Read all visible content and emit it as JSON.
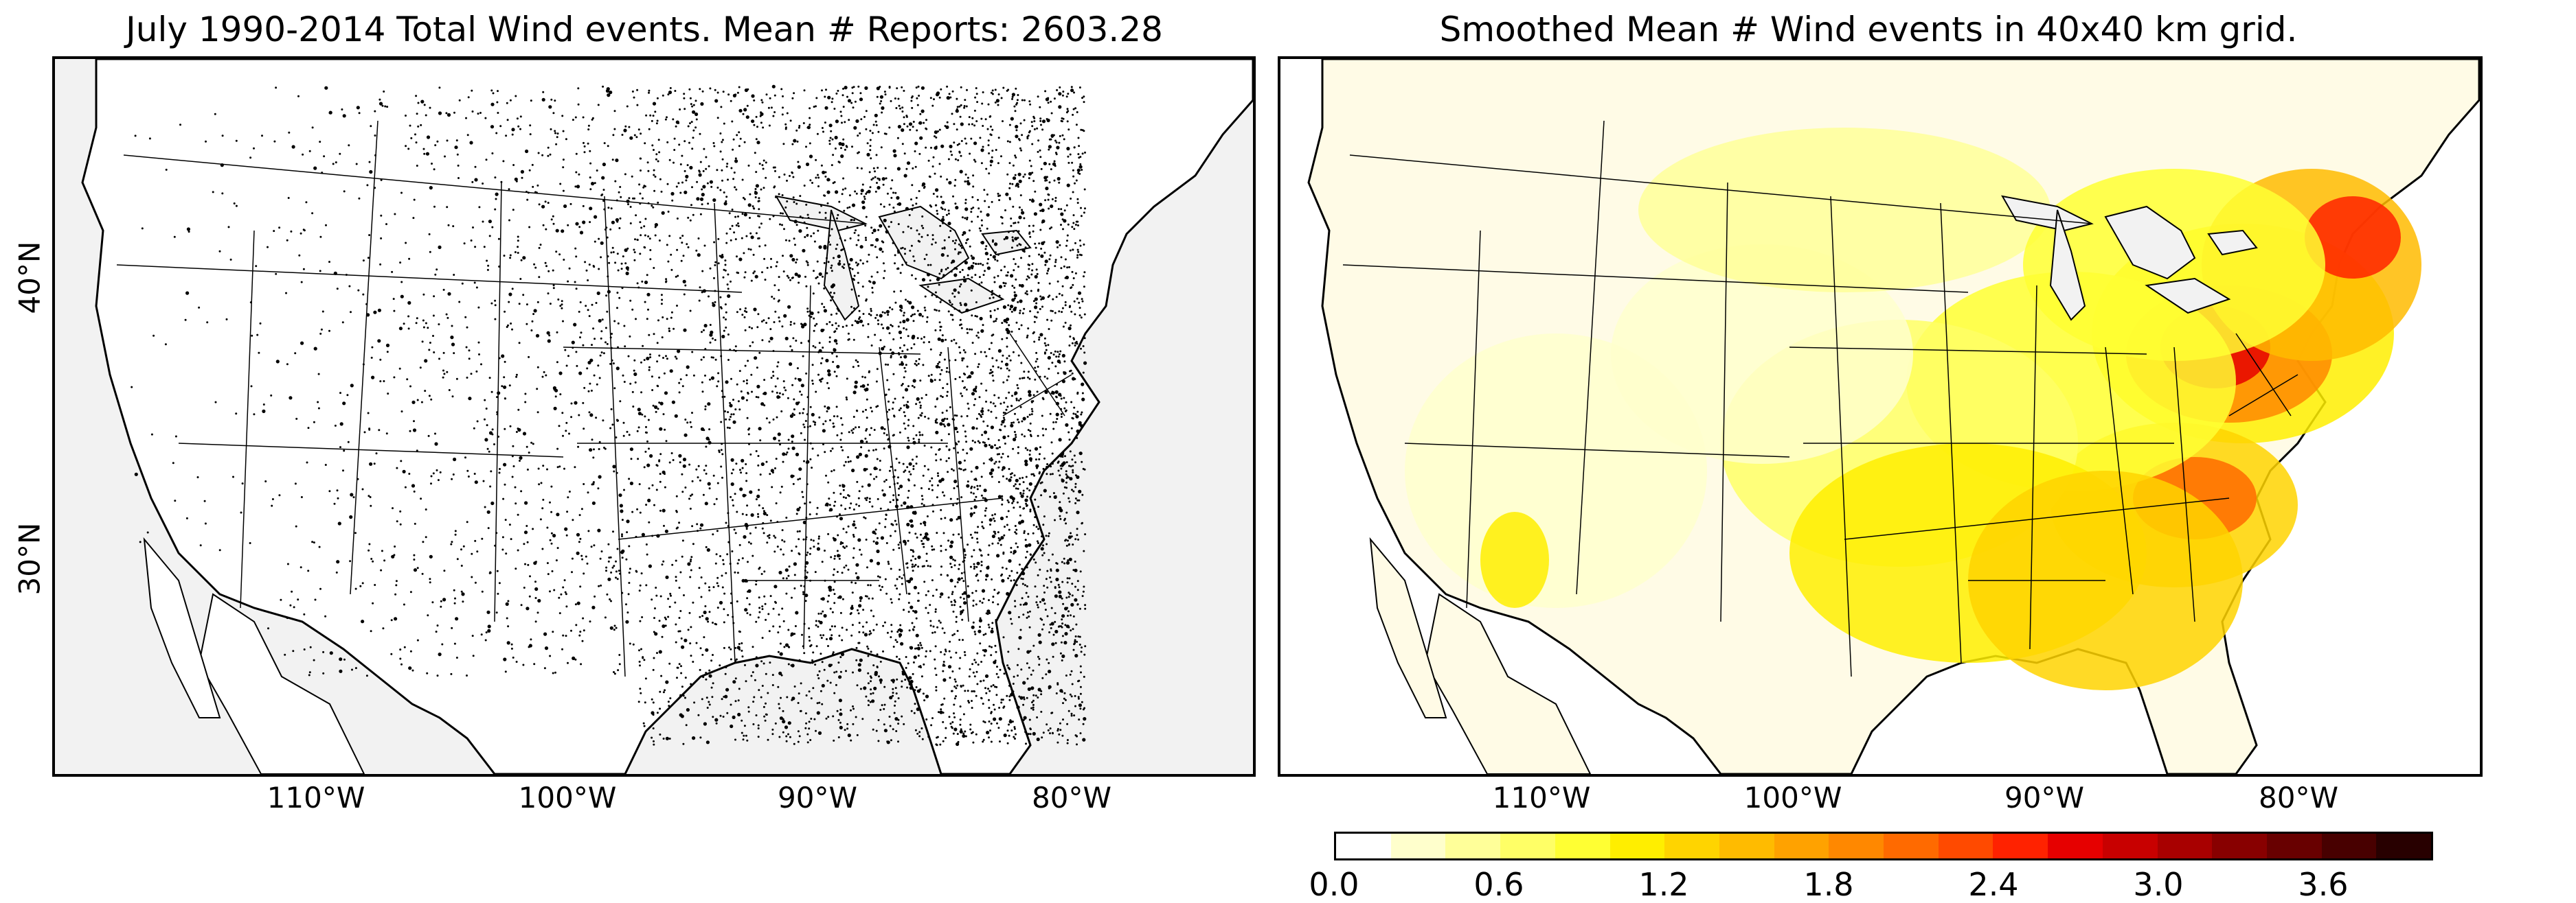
{
  "left_panel": {
    "title": "July 1990-2014 Total Wind events. Mean # Reports: 2603.28",
    "lon_labels": [
      "110°W",
      "100°W",
      "90°W",
      "80°W"
    ],
    "lat_labels": [
      "40°N",
      "30°N"
    ]
  },
  "right_panel": {
    "title": "Smoothed Mean # Wind events in 40x40 km grid.",
    "lon_labels": [
      "110°W",
      "100°W",
      "90°W",
      "80°W"
    ]
  },
  "colorbar": {
    "tick_labels": [
      "0.0",
      "0.6",
      "1.2",
      "1.8",
      "2.4",
      "3.0",
      "3.6"
    ],
    "min": 0.0,
    "max": 4.0,
    "colors": [
      "#ffffff",
      "#ffffcc",
      "#ffff99",
      "#ffff66",
      "#ffff33",
      "#ffee00",
      "#ffd400",
      "#ffbb00",
      "#ffa200",
      "#ff8800",
      "#ff6a00",
      "#ff4a00",
      "#ff2200",
      "#e60000",
      "#c80000",
      "#a80000",
      "#880000",
      "#680000",
      "#480000",
      "#280000"
    ]
  },
  "map": {
    "ocean_color": "#f2f2f2",
    "land_color": "#ffffff",
    "dot_color": "#000000"
  }
}
